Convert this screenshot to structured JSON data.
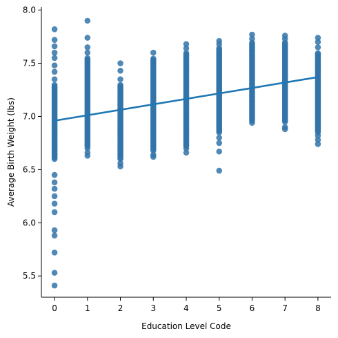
{
  "chart_data": {
    "type": "scatter",
    "xlabel": "Education Level Code",
    "ylabel": "Average Birth Weight (lbs)",
    "xlim": [
      -0.4,
      8.4
    ],
    "ylim": [
      5.3,
      8.03
    ],
    "x_ticks": [
      0,
      1,
      2,
      3,
      4,
      5,
      6,
      7,
      8
    ],
    "y_ticks": [
      5.5,
      6.0,
      6.5,
      7.0,
      7.5,
      8.0
    ],
    "grid": false,
    "legend": "none",
    "point_color": "#3274a9",
    "line_color": "#1f77b4",
    "regression_line": {
      "x": [
        0,
        8
      ],
      "y": [
        6.96,
        7.37
      ]
    },
    "groups": [
      {
        "x": 0,
        "dense_min": 6.6,
        "dense_max": 7.3,
        "y_min": 5.41,
        "y_max": 7.82,
        "outliers": [
          5.41,
          5.53,
          5.72,
          5.88,
          5.93,
          6.1,
          6.18,
          6.25,
          6.32,
          6.38,
          6.45,
          7.35,
          7.42,
          7.48,
          7.55,
          7.6,
          7.66,
          7.72,
          7.82
        ]
      },
      {
        "x": 1,
        "dense_min": 6.72,
        "dense_max": 7.55,
        "y_min": 6.63,
        "y_max": 7.9,
        "outliers": [
          6.63,
          6.66,
          6.7,
          7.6,
          7.65,
          7.74,
          7.9
        ]
      },
      {
        "x": 2,
        "dense_min": 6.6,
        "dense_max": 7.3,
        "y_min": 6.53,
        "y_max": 7.5,
        "outliers": [
          6.53,
          6.56,
          7.35,
          7.43,
          7.5
        ]
      },
      {
        "x": 3,
        "dense_min": 6.68,
        "dense_max": 7.55,
        "y_min": 6.62,
        "y_max": 7.6,
        "outliers": [
          6.62,
          6.64,
          7.6
        ]
      },
      {
        "x": 4,
        "dense_min": 6.72,
        "dense_max": 7.6,
        "y_min": 6.66,
        "y_max": 7.68,
        "outliers": [
          6.66,
          6.7,
          7.64,
          7.68
        ]
      },
      {
        "x": 5,
        "dense_min": 6.85,
        "dense_max": 7.65,
        "y_min": 6.49,
        "y_max": 7.71,
        "outliers": [
          6.49,
          6.67,
          6.75,
          6.8,
          7.68,
          7.71
        ]
      },
      {
        "x": 6,
        "dense_min": 6.96,
        "dense_max": 7.7,
        "y_min": 6.94,
        "y_max": 7.77,
        "outliers": [
          6.94,
          7.73,
          7.77
        ]
      },
      {
        "x": 7,
        "dense_min": 6.95,
        "dense_max": 7.7,
        "y_min": 6.88,
        "y_max": 7.76,
        "outliers": [
          6.88,
          6.9,
          7.73,
          7.76
        ]
      },
      {
        "x": 8,
        "dense_min": 6.85,
        "dense_max": 7.6,
        "y_min": 6.74,
        "y_max": 7.74,
        "outliers": [
          6.74,
          6.78,
          6.82,
          7.65,
          7.7,
          7.74
        ]
      }
    ]
  }
}
